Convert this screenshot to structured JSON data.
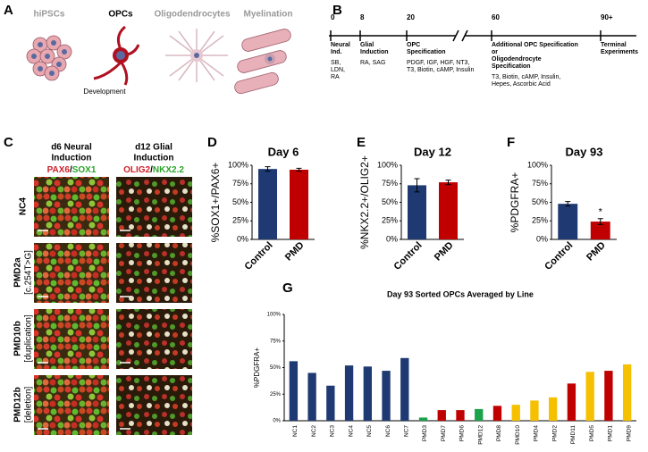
{
  "panels": {
    "a": {
      "label": "A",
      "stages": [
        "hiPSCs",
        "OPCs",
        "Oligodendrocytes",
        "Myelination"
      ],
      "note": "Development"
    },
    "b": {
      "label": "B",
      "days": [
        "0",
        "8",
        "20",
        "60",
        "90+"
      ],
      "stages": [
        {
          "title": [
            "Neural",
            "Ind."
          ],
          "factors": [
            "SB,",
            "LDN,",
            "RA"
          ]
        },
        {
          "title": [
            "Glial",
            "Induction"
          ],
          "factors": [
            "RA, SAG"
          ]
        },
        {
          "title": [
            "OPC",
            "Specification"
          ],
          "factors": [
            "PDGF, IGF, HGF, NT3,",
            "T3, Biotin, cAMP, Insulin"
          ]
        },
        {
          "title": [
            "Additional OPC Specification",
            "or",
            "Oligodendrocyte",
            "Specification"
          ],
          "factors": [
            "T3, Biotin, cAMP, Insulin,",
            "Hepes, Ascorbic Acid"
          ]
        },
        {
          "title": [
            "Terminal",
            "Experiments"
          ]
        }
      ]
    },
    "c": {
      "label": "C",
      "columns": [
        {
          "title": [
            "d6 Neural",
            "Induction"
          ],
          "markers": [
            "PAX6",
            "/",
            "SOX1"
          ]
        },
        {
          "title": [
            "d12 Glial",
            "Induction"
          ],
          "markers": [
            "OLIG2",
            "/",
            "NKX2.2"
          ]
        }
      ],
      "rows": [
        [
          "NC4"
        ],
        [
          "PMD2a",
          "[c.254T>G]"
        ],
        [
          "PMD10b",
          "[duplication]"
        ],
        [
          "PMD12b",
          "[deletion]"
        ]
      ]
    }
  },
  "chart_data": [
    {
      "type": "bar",
      "label": "D",
      "title": "Day 6",
      "y_label": "%SOX1+/PAX6+",
      "categories": [
        "Control",
        "PMD"
      ],
      "values": [
        95,
        94
      ],
      "errors": [
        3,
        2
      ],
      "colors": [
        "#1f3a73",
        "#c00000"
      ],
      "ylim": [
        0,
        100
      ],
      "yticks": [
        {
          "value": 0,
          "label": "0%"
        },
        {
          "value": 25,
          "label": "25%"
        },
        {
          "value": 50,
          "label": "50%"
        },
        {
          "value": 75,
          "label": "75%"
        },
        {
          "value": 100,
          "label": "100%"
        }
      ]
    },
    {
      "type": "bar",
      "label": "E",
      "title": "Day 12",
      "y_label": "%NKX2.2+/OLIG2+",
      "categories": [
        "Control",
        "PMD"
      ],
      "values": [
        73,
        77
      ],
      "errors": [
        9,
        3
      ],
      "colors": [
        "#1f3a73",
        "#c00000"
      ],
      "ylim": [
        0,
        100
      ],
      "yticks": [
        {
          "value": 0,
          "label": "0%"
        },
        {
          "value": 25,
          "label": "25%"
        },
        {
          "value": 50,
          "label": "50%"
        },
        {
          "value": 75,
          "label": "75%"
        },
        {
          "value": 100,
          "label": "100%"
        }
      ]
    },
    {
      "type": "bar",
      "label": "F",
      "title": "Day 93",
      "y_label": "%PDGFRA+",
      "categories": [
        "Control",
        "PMD"
      ],
      "values": [
        48,
        24
      ],
      "errors": [
        3,
        4
      ],
      "colors": [
        "#1f3a73",
        "#c00000"
      ],
      "ylim": [
        0,
        100
      ],
      "annotations": [
        {
          "text": "*",
          "category": "PMD"
        }
      ],
      "yticks": [
        {
          "value": 0,
          "label": "0%"
        },
        {
          "value": 25,
          "label": "25%"
        },
        {
          "value": 50,
          "label": "50%"
        },
        {
          "value": 75,
          "label": "75%"
        },
        {
          "value": 100,
          "label": "100%"
        }
      ]
    },
    {
      "type": "bar",
      "label": "G",
      "title": "Day 93 Sorted OPCs Averaged by Line",
      "y_label": "%PDGFRA+",
      "categories": [
        "NC1",
        "NC2",
        "NC3",
        "NC4",
        "NC5",
        "NC6",
        "NC7",
        "PMD3",
        "PMD7",
        "PMD6",
        "PMD12",
        "PMD8",
        "PMD10",
        "PMD4",
        "PMD2",
        "PMD11",
        "PMD5",
        "PMD1",
        "PMD9"
      ],
      "values": [
        56,
        45,
        33,
        52,
        51,
        47,
        59,
        3,
        10,
        10,
        11,
        14,
        15,
        19,
        22,
        35,
        46,
        47,
        53
      ],
      "colors": [
        "#1f3a73",
        "#1f3a73",
        "#1f3a73",
        "#1f3a73",
        "#1f3a73",
        "#1f3a73",
        "#1f3a73",
        "#1aa34a",
        "#c00000",
        "#c00000",
        "#1aa34a",
        "#c00000",
        "#f5c000",
        "#f5c000",
        "#f5c000",
        "#c00000",
        "#f5c000",
        "#c00000",
        "#f5c000"
      ],
      "ylim": [
        0,
        100
      ],
      "yticks": [
        {
          "value": 0,
          "label": "0%"
        },
        {
          "value": 25,
          "label": "25%"
        },
        {
          "value": 50,
          "label": "50%"
        },
        {
          "value": 75,
          "label": "75%"
        },
        {
          "value": 100,
          "label": "100%"
        }
      ]
    }
  ]
}
